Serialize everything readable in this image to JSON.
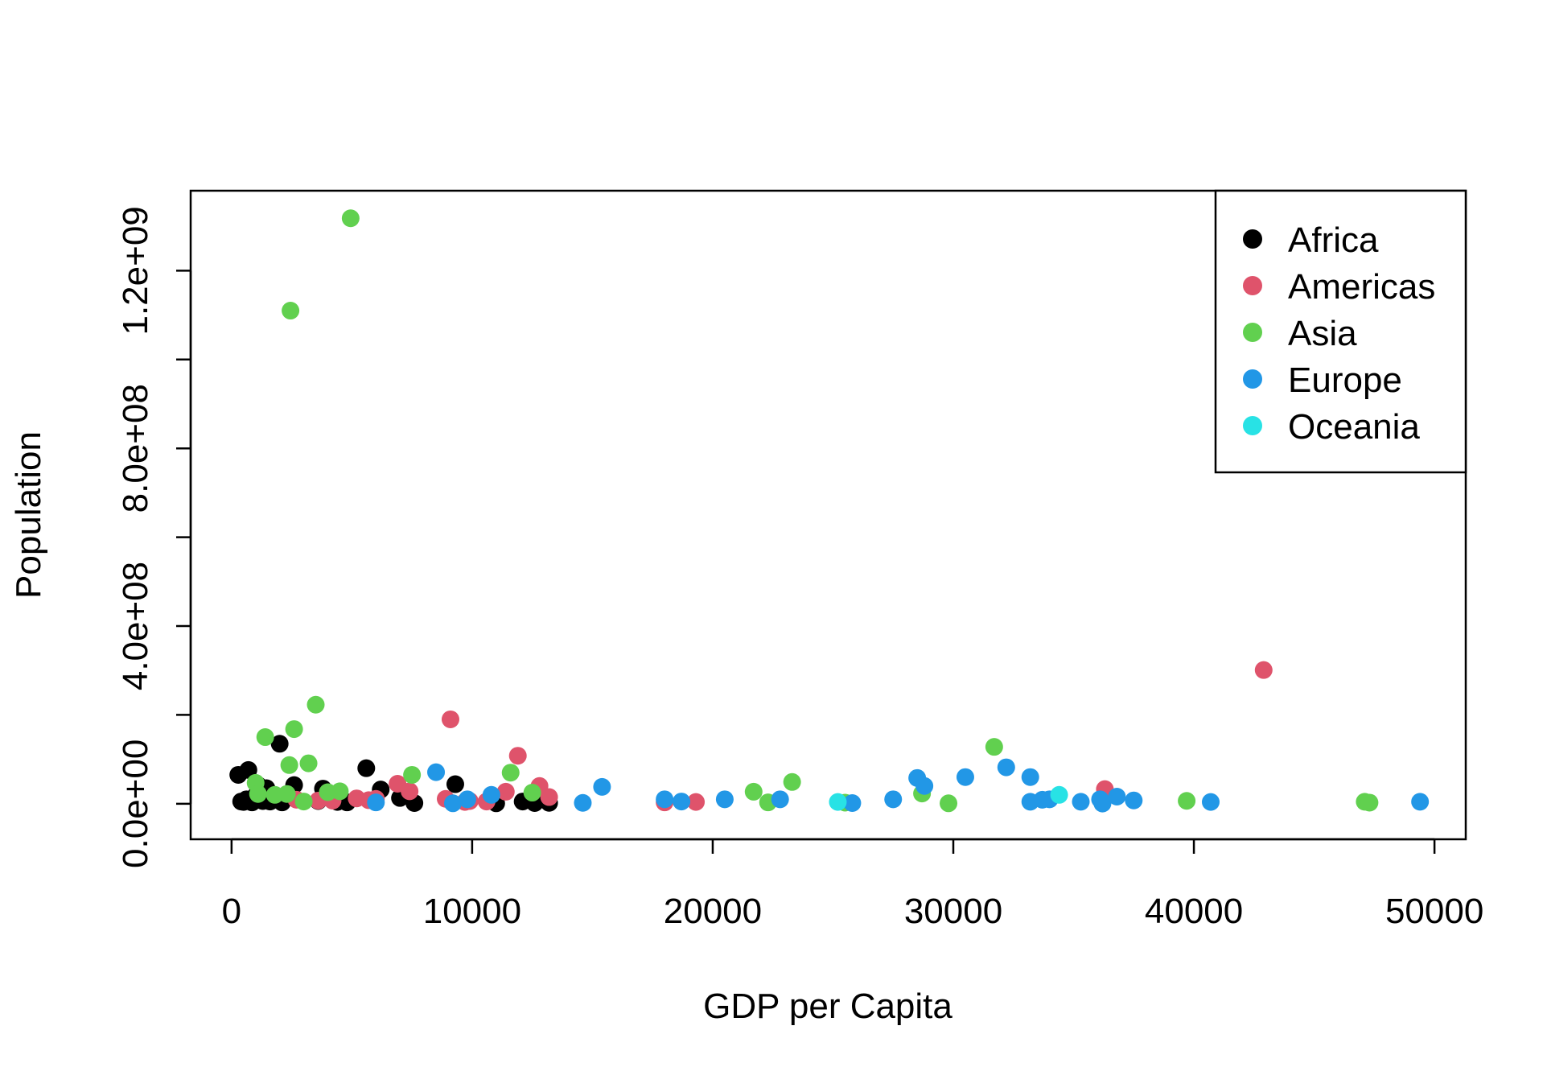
{
  "chart_data": {
    "type": "scatter",
    "xlabel": "GDP per Capita",
    "ylabel": "Population",
    "xlim": [
      -1700,
      51300
    ],
    "ylim": [
      -80000000,
      1380000000
    ],
    "x_ticks": [
      {
        "value": 0,
        "label": "0"
      },
      {
        "value": 10000,
        "label": "10000"
      },
      {
        "value": 20000,
        "label": "20000"
      },
      {
        "value": 30000,
        "label": "30000"
      },
      {
        "value": 40000,
        "label": "40000"
      },
      {
        "value": 50000,
        "label": "50000"
      }
    ],
    "y_ticks": [
      {
        "value": 0,
        "label": "0.0e+00"
      },
      {
        "value": 200000000,
        "label": ""
      },
      {
        "value": 400000000,
        "label": "4.0e+08"
      },
      {
        "value": 600000000,
        "label": ""
      },
      {
        "value": 800000000,
        "label": "8.0e+08"
      },
      {
        "value": 1000000000,
        "label": ""
      },
      {
        "value": 1200000000,
        "label": "1.2e+09"
      }
    ],
    "legend_position": "top-right",
    "grid": false,
    "series": [
      {
        "name": "Africa",
        "color": "#000000",
        "points": [
          [
            280,
            65000000
          ],
          [
            400,
            5000000
          ],
          [
            500,
            4000000
          ],
          [
            620,
            10000000
          ],
          [
            700,
            76000000
          ],
          [
            850,
            3000000
          ],
          [
            1000,
            18000000
          ],
          [
            1100,
            42000000
          ],
          [
            1200,
            12000000
          ],
          [
            1300,
            6000000
          ],
          [
            1450,
            35000000
          ],
          [
            1600,
            5000000
          ],
          [
            1750,
            9000000
          ],
          [
            2000,
            135000000
          ],
          [
            2100,
            3000000
          ],
          [
            2600,
            42000000
          ],
          [
            3600,
            6000000
          ],
          [
            3800,
            34000000
          ],
          [
            4400,
            4000000
          ],
          [
            4800,
            3000000
          ],
          [
            5600,
            80000000
          ],
          [
            6200,
            32000000
          ],
          [
            7000,
            13000000
          ],
          [
            7600,
            1500000
          ],
          [
            9300,
            44000000
          ],
          [
            11000,
            1000000
          ],
          [
            12100,
            5000000
          ],
          [
            12600,
            1500000
          ],
          [
            13200,
            2000000
          ]
        ]
      },
      {
        "name": "Americas",
        "color": "#DF536B",
        "points": [
          [
            2700,
            9000000
          ],
          [
            3600,
            7000000
          ],
          [
            4200,
            7000000
          ],
          [
            5200,
            12000000
          ],
          [
            5700,
            8000000
          ],
          [
            6000,
            11000000
          ],
          [
            6900,
            45000000
          ],
          [
            7400,
            28000000
          ],
          [
            8900,
            11000000
          ],
          [
            9100,
            190000000
          ],
          [
            9700,
            4000000
          ],
          [
            9900,
            6000000
          ],
          [
            10600,
            5000000
          ],
          [
            11400,
            27000000
          ],
          [
            11900,
            108000000
          ],
          [
            12800,
            40000000
          ],
          [
            13200,
            15000000
          ],
          [
            18000,
            3000000
          ],
          [
            19300,
            4000000
          ],
          [
            36300,
            33000000
          ],
          [
            42900,
            301000000
          ]
        ]
      },
      {
        "name": "Asia",
        "color": "#61D04F",
        "points": [
          [
            1000,
            47000000
          ],
          [
            1100,
            22000000
          ],
          [
            1400,
            150000000
          ],
          [
            1800,
            20000000
          ],
          [
            2300,
            22000000
          ],
          [
            2400,
            87000000
          ],
          [
            2450,
            1110000000
          ],
          [
            2600,
            168000000
          ],
          [
            3000,
            5000000
          ],
          [
            3200,
            91000000
          ],
          [
            3500,
            223000000
          ],
          [
            4000,
            26000000
          ],
          [
            4500,
            28000000
          ],
          [
            4950,
            1318000000
          ],
          [
            7500,
            65000000
          ],
          [
            11600,
            70000000
          ],
          [
            12500,
            25000000
          ],
          [
            21700,
            27000000
          ],
          [
            22300,
            3000000
          ],
          [
            23300,
            49000000
          ],
          [
            25500,
            2500000
          ],
          [
            28700,
            23000000
          ],
          [
            29800,
            1000000
          ],
          [
            31700,
            128000000
          ],
          [
            39700,
            6500000
          ],
          [
            47100,
            4500000
          ],
          [
            47300,
            2500000
          ]
        ]
      },
      {
        "name": "Europe",
        "color": "#2297E6",
        "points": [
          [
            6000,
            3000000
          ],
          [
            8500,
            71000000
          ],
          [
            9200,
            1000000
          ],
          [
            9800,
            10000000
          ],
          [
            10800,
            20000000
          ],
          [
            14600,
            2000000
          ],
          [
            15400,
            38000000
          ],
          [
            18000,
            10000000
          ],
          [
            18700,
            5000000
          ],
          [
            20500,
            10000000
          ],
          [
            22800,
            10000000
          ],
          [
            25800,
            1500000
          ],
          [
            27500,
            10000000
          ],
          [
            28500,
            58000000
          ],
          [
            28800,
            40000000
          ],
          [
            30500,
            60000000
          ],
          [
            32200,
            82000000
          ],
          [
            33200,
            60000000
          ],
          [
            33200,
            4500000
          ],
          [
            33700,
            9000000
          ],
          [
            34000,
            10000000
          ],
          [
            35300,
            4500000
          ],
          [
            36100,
            10000000
          ],
          [
            36200,
            400000
          ],
          [
            36800,
            16000000
          ],
          [
            37500,
            7500000
          ],
          [
            40700,
            4000000
          ],
          [
            49400,
            4500000
          ]
        ]
      },
      {
        "name": "Oceania",
        "color": "#28E2E5",
        "points": [
          [
            25200,
            4000000
          ],
          [
            34400,
            20000000
          ]
        ]
      }
    ]
  }
}
